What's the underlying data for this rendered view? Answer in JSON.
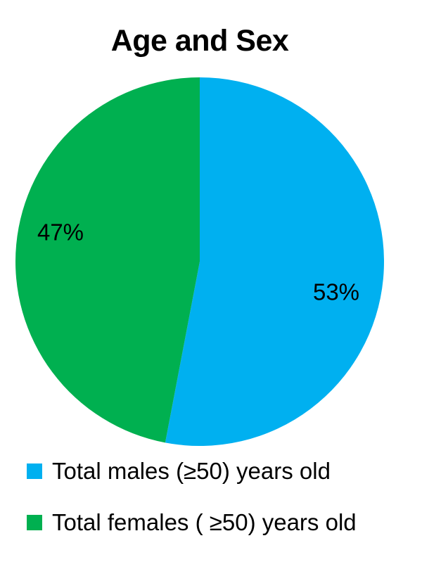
{
  "chart_data": {
    "type": "pie",
    "title": "Age and Sex",
    "slices": [
      {
        "name": "Total males (≥50) years old",
        "value": 53,
        "label": "53%",
        "color": "#00b0f0"
      },
      {
        "name": "Total females ( ≥50) years old",
        "value": 47,
        "label": "47%",
        "color": "#00b050"
      }
    ],
    "legend_position": "bottom"
  }
}
